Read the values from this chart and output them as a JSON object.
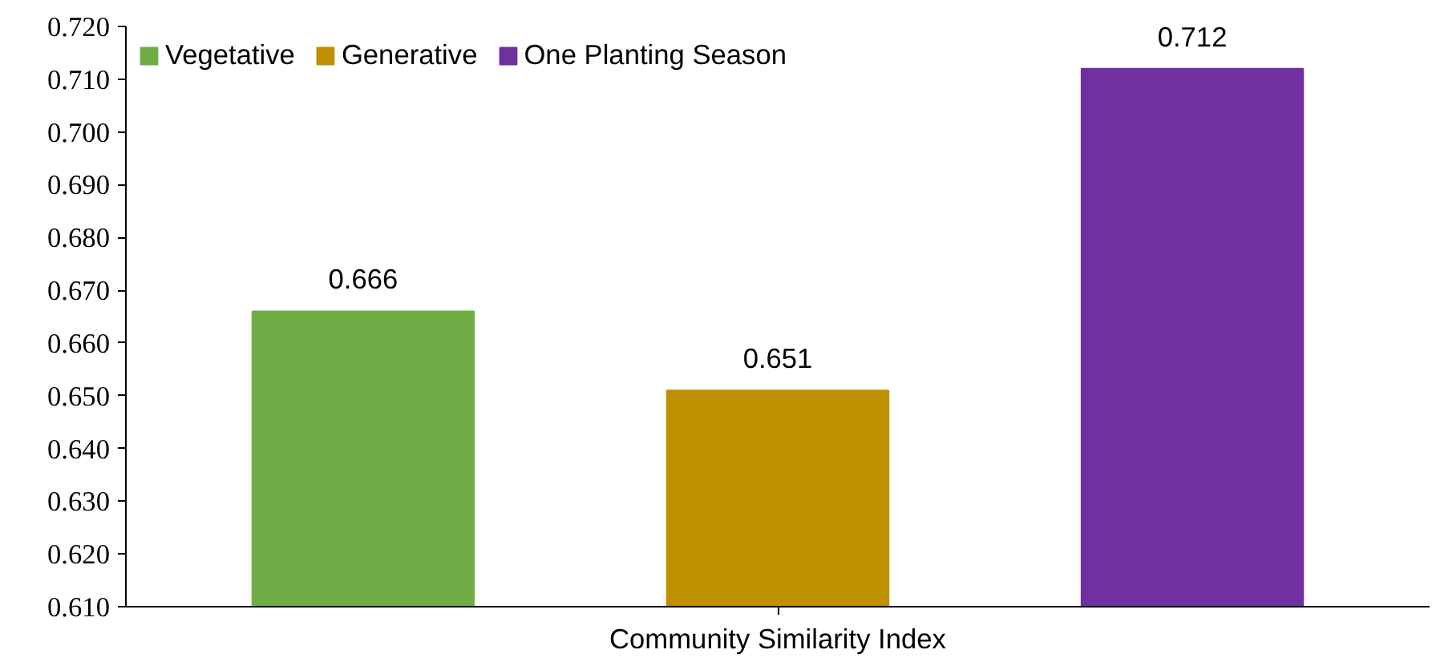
{
  "chart_data": {
    "type": "bar",
    "categories": [
      "Community Similarity Index"
    ],
    "series": [
      {
        "name": "Vegetative",
        "color": "#70ad47",
        "values": [
          0.666
        ]
      },
      {
        "name": "Generative",
        "color": "#bf9000",
        "values": [
          0.651
        ]
      },
      {
        "name": "One Planting Season",
        "color": "#7030a0",
        "values": [
          0.712
        ]
      }
    ],
    "ylim": [
      0.61,
      0.72
    ],
    "yticks": [
      {
        "value": 0.61,
        "label": "0.610"
      },
      {
        "value": 0.62,
        "label": "0.620"
      },
      {
        "value": 0.63,
        "label": "0.630"
      },
      {
        "value": 0.64,
        "label": "0.640"
      },
      {
        "value": 0.65,
        "label": "0.650"
      },
      {
        "value": 0.66,
        "label": "0.660"
      },
      {
        "value": 0.67,
        "label": "0.670"
      },
      {
        "value": 0.68,
        "label": "0.680"
      },
      {
        "value": 0.69,
        "label": "0.690"
      },
      {
        "value": 0.7,
        "label": "0.700"
      },
      {
        "value": 0.71,
        "label": "0.710"
      },
      {
        "value": 0.72,
        "label": "0.720"
      }
    ],
    "data_labels": true,
    "grid": false,
    "legend": "top left"
  }
}
